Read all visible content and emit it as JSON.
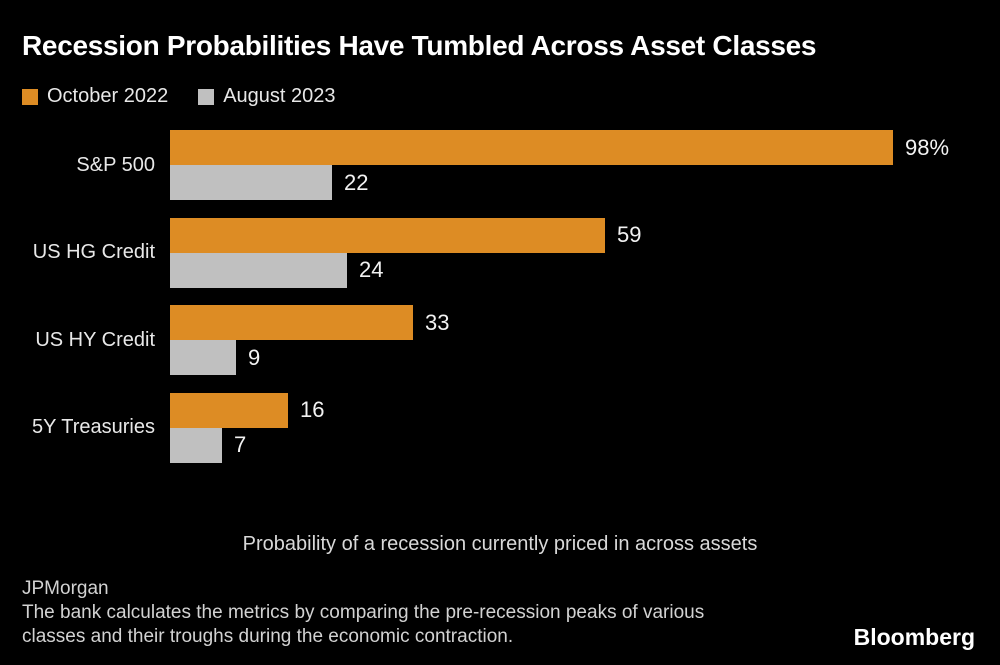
{
  "page": {
    "background_color": "#000000"
  },
  "header": {
    "title": "Recession Probabilities Have Tumbled Across Asset Classes"
  },
  "legend": {
    "items": [
      {
        "label": "October 2022",
        "color": "#DD8C24"
      },
      {
        "label": "August 2023",
        "color": "#C0C0C0"
      }
    ]
  },
  "chart_data": {
    "type": "bar",
    "orientation": "horizontal",
    "title": "Recession Probabilities Have Tumbled Across Asset Classes",
    "caption": "Probability of a recession currently priced in across assets",
    "categories": [
      "S&P 500",
      "US HG Credit",
      "US HY Credit",
      "5Y Treasuries"
    ],
    "series": [
      {
        "name": "October 2022",
        "color": "#DD8C24",
        "values": [
          98,
          59,
          33,
          16
        ],
        "value_labels": [
          "98%",
          "59",
          "33",
          "16"
        ]
      },
      {
        "name": "August 2023",
        "color": "#C0C0C0",
        "values": [
          22,
          24,
          9,
          7
        ],
        "value_labels": [
          "22",
          "24",
          "9",
          "7"
        ]
      }
    ],
    "xlim": [
      0,
      100
    ],
    "value_unit": "%",
    "grid": false,
    "legend_position": "top-left",
    "value_label_color": "#f2f2f2",
    "category_label_color": "#e8e8e8"
  },
  "footer": {
    "source": "JPMorgan",
    "note_lines": [
      "The bank calculates the metrics by comparing the pre-recession peaks of various",
      "classes and their troughs during the economic contraction."
    ],
    "brand": "Bloomberg"
  }
}
